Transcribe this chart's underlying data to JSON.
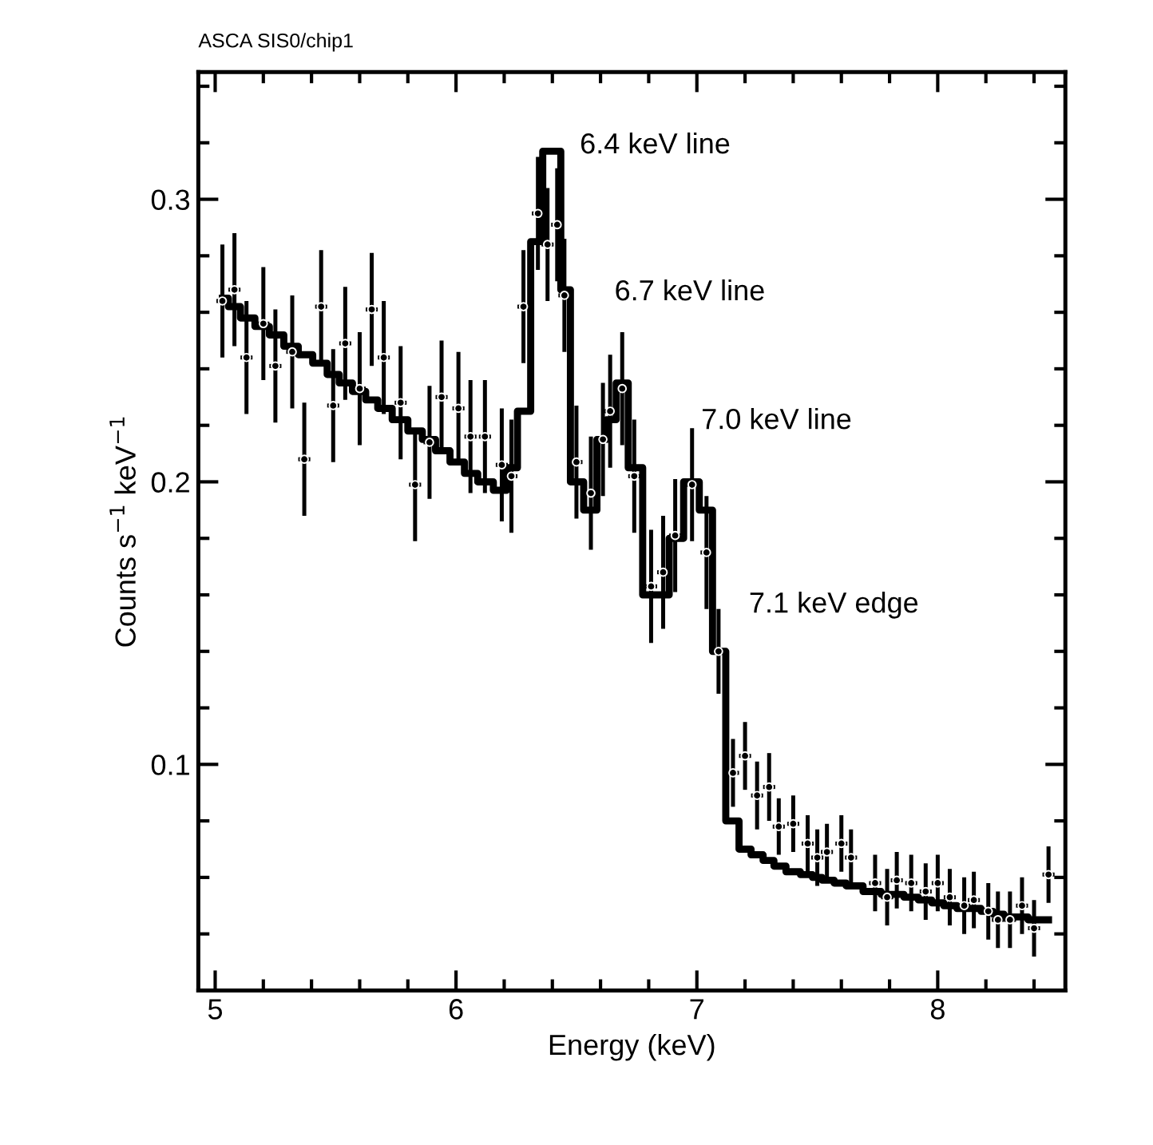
{
  "chart_data": {
    "type": "scatter",
    "title": "ASCA SIS0/chip1",
    "xlabel": "Energy (keV)",
    "ylabel": "Counts s$^{−1}$ keV$^{−1}$",
    "xlim": [
      4.93,
      8.53
    ],
    "ylim": [
      0.02,
      0.345
    ],
    "xticks": [
      5,
      6,
      7,
      8
    ],
    "yticks": [
      0.1,
      0.2,
      0.3
    ],
    "grid": false,
    "legend": false,
    "series": [
      {
        "color": "#000000",
        "x": [
          5.03,
          5.08,
          5.13,
          5.2,
          5.25,
          5.32,
          5.37,
          5.44,
          5.49,
          5.54,
          5.6,
          5.65,
          5.7,
          5.77,
          5.83,
          5.89,
          5.94,
          6.01,
          6.06,
          6.12,
          6.19,
          6.23,
          6.28,
          6.34,
          6.38,
          6.42,
          6.45,
          6.5,
          6.56,
          6.61,
          6.64,
          6.69,
          6.74,
          6.81,
          6.86,
          6.91,
          6.98,
          7.04,
          7.09,
          7.15,
          7.2,
          7.25,
          7.3,
          7.34,
          7.4,
          7.46,
          7.5,
          7.54,
          7.6,
          7.64,
          7.74,
          7.79,
          7.83,
          7.89,
          7.95,
          8.0,
          8.05,
          8.11,
          8.15,
          8.21,
          8.25,
          8.3,
          8.35,
          8.4,
          8.46
        ],
        "values": [
          0.264,
          0.268,
          0.244,
          0.256,
          0.241,
          0.246,
          0.208,
          0.262,
          0.227,
          0.249,
          0.233,
          0.261,
          0.244,
          0.228,
          0.199,
          0.214,
          0.23,
          0.226,
          0.216,
          0.216,
          0.206,
          0.202,
          0.262,
          0.295,
          0.284,
          0.291,
          0.266,
          0.207,
          0.196,
          0.215,
          0.225,
          0.233,
          0.202,
          0.163,
          0.168,
          0.181,
          0.199,
          0.175,
          0.14,
          0.097,
          0.103,
          0.089,
          0.092,
          0.078,
          0.079,
          0.072,
          0.067,
          0.069,
          0.072,
          0.067,
          0.058,
          0.053,
          0.059,
          0.058,
          0.055,
          0.058,
          0.053,
          0.05,
          0.052,
          0.048,
          0.045,
          0.045,
          0.05,
          0.042,
          0.061
        ],
        "errors": [
          0.02,
          0.02,
          0.02,
          0.02,
          0.02,
          0.02,
          0.02,
          0.02,
          0.02,
          0.02,
          0.02,
          0.02,
          0.02,
          0.02,
          0.02,
          0.02,
          0.02,
          0.02,
          0.02,
          0.02,
          0.02,
          0.02,
          0.02,
          0.02,
          0.02,
          0.02,
          0.02,
          0.02,
          0.02,
          0.02,
          0.02,
          0.02,
          0.02,
          0.02,
          0.02,
          0.02,
          0.02,
          0.02,
          0.015,
          0.012,
          0.012,
          0.012,
          0.012,
          0.01,
          0.01,
          0.01,
          0.01,
          0.01,
          0.01,
          0.01,
          0.01,
          0.01,
          0.01,
          0.01,
          0.01,
          0.01,
          0.01,
          0.01,
          0.01,
          0.01,
          0.01,
          0.01,
          0.01,
          0.01,
          0.01
        ],
        "xerrors": [
          0.025,
          0.025,
          0.025,
          0.025,
          0.025,
          0.025,
          0.025,
          0.025,
          0.025,
          0.025,
          0.025,
          0.025,
          0.025,
          0.025,
          0.025,
          0.025,
          0.025,
          0.025,
          0.025,
          0.025,
          0.025,
          0.025,
          0.025,
          0.025,
          0.025,
          0.025,
          0.025,
          0.025,
          0.025,
          0.025,
          0.025,
          0.025,
          0.025,
          0.025,
          0.025,
          0.025,
          0.025,
          0.025,
          0.025,
          0.025,
          0.025,
          0.025,
          0.025,
          0.025,
          0.025,
          0.025,
          0.025,
          0.025,
          0.025,
          0.025,
          0.025,
          0.025,
          0.025,
          0.025,
          0.025,
          0.025,
          0.025,
          0.025,
          0.025,
          0.025,
          0.025,
          0.025,
          0.025,
          0.025,
          0.025
        ]
      },
      {
        "type": "step",
        "color": "#000000",
        "x": [
          5.03,
          5.08,
          5.13,
          5.2,
          5.25,
          5.32,
          5.37,
          5.44,
          5.49,
          5.54,
          5.6,
          5.65,
          5.7,
          5.77,
          5.83,
          5.89,
          5.94,
          6.01,
          6.06,
          6.12,
          6.19,
          6.23,
          6.28,
          6.34,
          6.38,
          6.42,
          6.45,
          6.5,
          6.56,
          6.61,
          6.64,
          6.69,
          6.74,
          6.81,
          6.86,
          6.91,
          6.98,
          7.04,
          7.09,
          7.15,
          7.2,
          7.25,
          7.3,
          7.34,
          7.4,
          7.46,
          7.5,
          7.54,
          7.6,
          7.64,
          7.74,
          7.79,
          7.83,
          7.89,
          7.95,
          8.0,
          8.05,
          8.11,
          8.15,
          8.21,
          8.25,
          8.3,
          8.35,
          8.4,
          8.46
        ],
        "values": [
          0.265,
          0.262,
          0.258,
          0.255,
          0.252,
          0.248,
          0.245,
          0.242,
          0.238,
          0.235,
          0.232,
          0.229,
          0.226,
          0.222,
          0.218,
          0.215,
          0.211,
          0.207,
          0.203,
          0.2,
          0.197,
          0.205,
          0.225,
          0.285,
          0.317,
          0.317,
          0.268,
          0.2,
          0.19,
          0.215,
          0.222,
          0.235,
          0.205,
          0.16,
          0.16,
          0.18,
          0.2,
          0.19,
          0.14,
          0.08,
          0.07,
          0.068,
          0.066,
          0.064,
          0.062,
          0.061,
          0.06,
          0.059,
          0.058,
          0.057,
          0.055,
          0.054,
          0.054,
          0.053,
          0.052,
          0.051,
          0.05,
          0.049,
          0.049,
          0.048,
          0.047,
          0.046,
          0.046,
          0.045,
          0.045
        ]
      }
    ],
    "annotations": [
      "6.4 keV line",
      "6.7 keV line",
      "7.0 keV line",
      "7.1 keV edge"
    ]
  }
}
